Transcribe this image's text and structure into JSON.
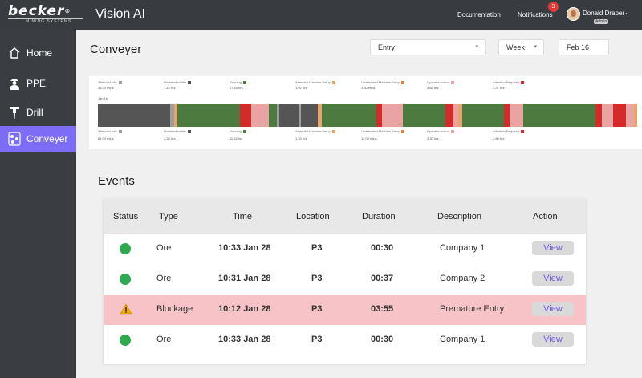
{
  "brand": {
    "logo_text": "becker",
    "logo_mark": "®",
    "logo_sub": "MINING SYSTEMS",
    "app_title": "Vision AI"
  },
  "topbar": {
    "documentation": "Documentation",
    "notifications": "Notifications",
    "notification_count": "3",
    "user_name": "Donald Draper",
    "user_role": "Admin"
  },
  "sidebar": {
    "items": [
      {
        "label": "Home",
        "icon": "home-icon"
      },
      {
        "label": "PPE",
        "icon": "worker-icon"
      },
      {
        "label": "Drill",
        "icon": "drill-icon"
      },
      {
        "label": "Conveyer",
        "icon": "conveyer-icon",
        "active": true
      }
    ]
  },
  "page": {
    "title": "Conveyer"
  },
  "filters": {
    "entry": "Entry",
    "period": "Week",
    "date": "Feb 16"
  },
  "timeline": {
    "row_label": "Jan 1st",
    "top_legend": [
      {
        "label": "Attended Idle",
        "value": "36.00 mins",
        "color": "#9e9e9e"
      },
      {
        "label": "Unattended Idle",
        "value": "1.42 hrs",
        "color": "#555555"
      },
      {
        "label": "Running",
        "value": "17.60 hrs",
        "color": "#4c7a3f"
      },
      {
        "label": "Attended Machine Setup",
        "value": "1.92 hrs",
        "color": "#e8a46a"
      },
      {
        "label": "Unattended Machine Setup",
        "value": "3.30 mins",
        "color": "#e0803a"
      },
      {
        "label": "Operator Action",
        "value": "3.66 hrs",
        "color": "#e9a3a3"
      },
      {
        "label": "Attention Required",
        "value": "3.37 hrs",
        "color": "#d42a2a"
      }
    ],
    "bottom_legend": [
      {
        "label": "Attended Idle",
        "value": "61.00 mins",
        "color": "#9e9e9e"
      },
      {
        "label": "Unattended Idle",
        "value": "4.38 hrs",
        "color": "#555555"
      },
      {
        "label": "Running",
        "value": "11.82 hrs",
        "color": "#4c7a3f"
      },
      {
        "label": "Attended Machine Setup",
        "value": "1.33 hrs",
        "color": "#e8a46a"
      },
      {
        "label": "Unattended Machine Setup",
        "value": "12.00 mins",
        "color": "#e0803a"
      },
      {
        "label": "Operator Action",
        "value": "3.30 hrs",
        "color": "#e9a3a3"
      },
      {
        "label": "Attention Required",
        "value": "1.80 hrs",
        "color": "#d42a2a"
      }
    ],
    "segments": [
      {
        "state": "Unattended Idle",
        "share": 12.6
      },
      {
        "state": "Attended Idle",
        "share": 0.8
      },
      {
        "state": "Attended Machine Setup",
        "share": 0.5
      },
      {
        "state": "Running",
        "share": 11.0
      },
      {
        "state": "Attention Required",
        "share": 2.0
      },
      {
        "state": "Operator Action",
        "share": 3.0
      },
      {
        "state": "Running",
        "share": 1.5
      },
      {
        "state": "Attended Idle",
        "share": 0.4
      },
      {
        "state": "Unattended Idle",
        "share": 3.4
      },
      {
        "state": "Attended Idle",
        "share": 0.4
      },
      {
        "state": "Unattended Idle",
        "share": 3.0
      },
      {
        "state": "Attended Machine Setup",
        "share": 0.7
      },
      {
        "state": "Running",
        "share": 9.5
      },
      {
        "state": "Attention Required",
        "share": 1.0
      },
      {
        "state": "Operator Action",
        "share": 3.6
      },
      {
        "state": "Running",
        "share": 7.5
      },
      {
        "state": "Attention Required",
        "share": 1.4
      },
      {
        "state": "Operator Action",
        "share": 0.8
      },
      {
        "state": "Attended Machine Setup",
        "share": 0.7
      },
      {
        "state": "Running",
        "share": 7.4
      },
      {
        "state": "Attention Required",
        "share": 1.0
      },
      {
        "state": "Operator Action",
        "share": 2.3
      },
      {
        "state": "Running",
        "share": 12.7
      },
      {
        "state": "Attention Required",
        "share": 1.1
      },
      {
        "state": "Operator Action",
        "share": 2.0
      },
      {
        "state": "Attention Required",
        "share": 2.2
      },
      {
        "state": "Operator Action",
        "share": 1.4
      },
      {
        "state": "Attended Machine Setup",
        "share": 0.6
      }
    ]
  },
  "events": {
    "title": "Events",
    "columns": [
      "Status",
      "Type",
      "Time",
      "Location",
      "Duration",
      "Description",
      "Action"
    ],
    "rows": [
      {
        "status": "ok",
        "type": "Ore",
        "time": "10:33 Jan 28",
        "location": "P3",
        "duration": "00:30",
        "description": "Company 1",
        "action": "View"
      },
      {
        "status": "ok",
        "type": "Ore",
        "time": "10:31 Jan 28",
        "location": "P3",
        "duration": "00:37",
        "description": "Company 2",
        "action": "View"
      },
      {
        "status": "warning",
        "type": "Blockage",
        "time": "10:12 Jan 28",
        "location": "P3",
        "duration": "03:55",
        "description": "Premature Entry",
        "action": "View"
      },
      {
        "status": "ok",
        "type": "Ore",
        "time": "10:33 Jan 28",
        "location": "P3",
        "duration": "00:30",
        "description": "Company 1",
        "action": "View"
      }
    ],
    "colors": {
      "ok": "#2fa84f",
      "warning": "#f2a900",
      "alert_row": "#f7c3c6"
    }
  }
}
